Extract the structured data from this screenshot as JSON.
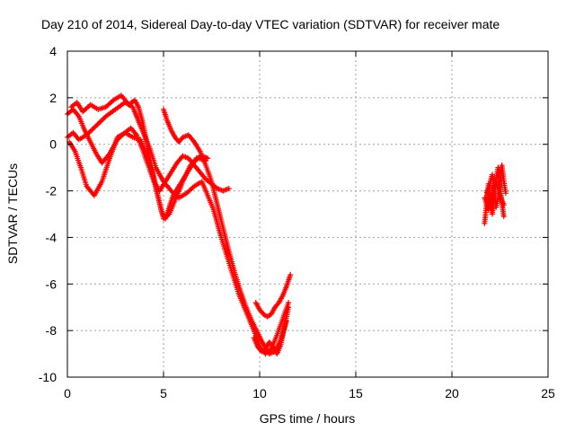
{
  "chart_data": {
    "type": "scatter",
    "title": "Day 210 of 2014, Sidereal Day-to-day VTEC variation (SDTVAR) for receiver mate",
    "xlabel": "GPS time / hours",
    "ylabel": "SDTVAR / TECUs",
    "xlim": [
      0,
      25
    ],
    "ylim": [
      -10,
      4
    ],
    "x_ticks": [
      "0",
      "5",
      "10",
      "15",
      "20",
      "25"
    ],
    "y_ticks": [
      "4",
      "2",
      "0",
      "-2",
      "-4",
      "-6",
      "-8",
      "-10"
    ],
    "grid": true,
    "marker": "+",
    "color": "#ff0000",
    "series": [
      {
        "x": [
          0,
          0.3,
          0.6,
          1.0,
          1.5,
          2.0,
          2.5,
          3.0,
          3.4,
          3.6,
          3.8,
          4.0,
          4.3,
          4.6,
          5.0,
          5.4,
          5.8,
          6.2,
          6.6,
          7.0,
          7.3,
          7.6,
          7.8,
          8.0,
          8.3,
          8.6,
          8.9,
          9.2,
          9.5,
          9.8,
          10.0,
          10.3,
          10.6,
          10.9,
          11.2,
          11.5
        ],
        "y": [
          0.3,
          0.5,
          0.2,
          0.4,
          0.8,
          1.2,
          1.5,
          1.8,
          1.6,
          1.2,
          0.8,
          0.4,
          -0.2,
          -1.0,
          -1.6,
          -2.0,
          -2.3,
          -2.1,
          -1.8,
          -1.6,
          -2.2,
          -2.8,
          -3.4,
          -4.0,
          -4.8,
          -5.6,
          -6.4,
          -7.0,
          -7.6,
          -8.2,
          -8.7,
          -9.0,
          -8.8,
          -8.2,
          -7.5,
          -6.8
        ]
      },
      {
        "x": [
          0,
          0.3,
          0.6,
          0.9,
          1.2,
          1.5,
          1.8,
          2.2,
          2.6,
          3.0,
          3.3,
          3.6,
          3.9,
          4.2,
          4.5,
          4.8,
          5.1,
          5.4,
          5.7,
          6.0,
          6.3,
          6.6,
          6.9,
          7.2,
          7.5,
          7.8,
          8.1,
          8.4
        ],
        "y": [
          1.3,
          1.5,
          1.2,
          0.6,
          0.1,
          -0.4,
          -0.8,
          -0.4,
          0.2,
          0.5,
          0.7,
          0.4,
          -0.2,
          -0.9,
          -1.6,
          -2.0,
          -1.6,
          -1.2,
          -0.8,
          -0.5,
          -0.6,
          -0.9,
          -1.2,
          -1.5,
          -1.7,
          -1.9,
          -2.0,
          -1.9
        ]
      },
      {
        "x": [
          0.1,
          0.4,
          0.7,
          1.0,
          1.4,
          1.8,
          2.2,
          2.6,
          3.0,
          3.4,
          3.8,
          4.1,
          4.4,
          4.7,
          5.0,
          5.3,
          5.6,
          6.0,
          6.4,
          6.8,
          7.2
        ],
        "y": [
          0.1,
          -0.3,
          -1.0,
          -1.8,
          -2.2,
          -1.6,
          -0.6,
          0.3,
          0.5,
          0.3,
          0.2,
          -0.4,
          -1.2,
          -2.2,
          -3.2,
          -3.0,
          -2.4,
          -1.6,
          -0.9,
          -0.6,
          -0.7
        ]
      },
      {
        "x": [
          0.2,
          0.5,
          0.8,
          1.2,
          1.6,
          2.0,
          2.4,
          2.8,
          3.2,
          3.5,
          3.7,
          3.9,
          4.1,
          4.3,
          4.5,
          4.7,
          4.9,
          5.1,
          5.3,
          5.5,
          5.8,
          6.1,
          6.4,
          6.7,
          7.0,
          7.3
        ],
        "y": [
          1.6,
          1.8,
          1.4,
          1.7,
          1.5,
          1.6,
          1.9,
          2.1,
          1.7,
          1.9,
          1.6,
          1.0,
          0.2,
          -0.6,
          -1.4,
          -2.2,
          -2.9,
          -3.2,
          -2.7,
          -2.2,
          -1.8,
          -1.4,
          -1.0,
          -0.6,
          -0.5,
          -0.6
        ]
      },
      {
        "x": [
          5.0,
          5.2,
          5.4,
          5.6,
          5.8,
          6.0,
          6.3,
          6.6,
          6.9,
          7.2,
          7.5,
          7.8,
          8.1,
          8.4,
          8.7,
          9.0,
          9.3,
          9.6,
          9.9,
          10.2,
          10.5,
          10.8,
          11.1,
          11.4
        ],
        "y": [
          1.5,
          1.0,
          0.6,
          0.3,
          0.1,
          0.3,
          0.4,
          0.1,
          -0.3,
          -0.9,
          -1.6,
          -2.6,
          -3.6,
          -4.6,
          -5.5,
          -6.3,
          -7.0,
          -7.6,
          -8.1,
          -8.6,
          -9.0,
          -8.9,
          -8.4,
          -7.6
        ]
      },
      {
        "x": [
          9.8,
          10.0,
          10.2,
          10.4,
          10.6,
          10.8,
          11.0,
          11.2,
          11.4,
          11.6
        ],
        "y": [
          -6.8,
          -7.1,
          -7.3,
          -7.4,
          -7.3,
          -7.0,
          -6.8,
          -6.5,
          -6.1,
          -5.6
        ]
      },
      {
        "x": [
          9.7,
          9.9,
          10.1,
          10.3,
          10.5,
          10.7,
          10.9,
          11.1,
          11.3,
          11.5
        ],
        "y": [
          -8.3,
          -8.7,
          -8.9,
          -8.8,
          -8.5,
          -8.7,
          -9.0,
          -8.6,
          -7.8,
          -7.0
        ]
      },
      {
        "x": [
          21.7,
          21.8,
          21.9,
          22.0,
          22.1,
          22.2,
          22.3,
          22.4,
          22.5,
          22.6,
          22.7
        ],
        "y": [
          -3.4,
          -2.6,
          -1.7,
          -2.4,
          -3.0,
          -2.2,
          -1.5,
          -1.0,
          -1.8,
          -2.5,
          -3.1
        ]
      },
      {
        "x": [
          21.8,
          21.9,
          22.0,
          22.1,
          22.2,
          22.3,
          22.4,
          22.5,
          22.6,
          22.7,
          22.8
        ],
        "y": [
          -2.0,
          -2.4,
          -1.6,
          -1.3,
          -1.9,
          -2.7,
          -2.3,
          -1.5,
          -0.9,
          -1.6,
          -2.1
        ]
      },
      {
        "x": [
          21.7,
          21.9,
          22.1,
          22.3,
          22.5,
          22.7
        ],
        "y": [
          -2.3,
          -2.8,
          -2.0,
          -1.6,
          -2.2,
          -2.6
        ]
      }
    ]
  }
}
